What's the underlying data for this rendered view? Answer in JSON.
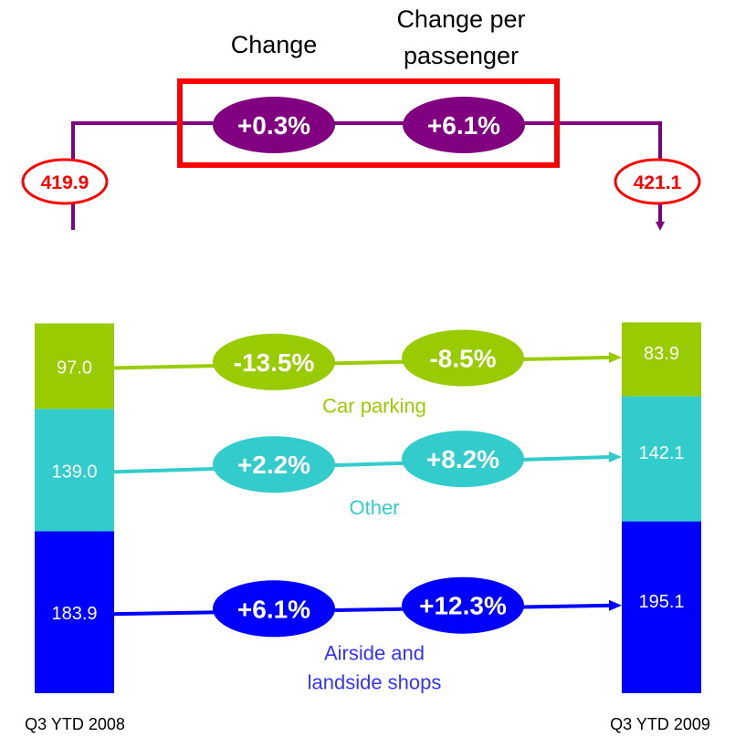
{
  "chart_data": {
    "type": "bar",
    "categories": [
      "Q3 YTD 2008",
      "Q3 YTD 2009"
    ],
    "totals": [
      "419.9",
      "421.1"
    ],
    "series": [
      {
        "key": "car",
        "name": "Car parking",
        "label_lines": [
          "Car parking"
        ],
        "values": [
          97.0,
          83.9
        ],
        "value_labels": [
          "97.0",
          "83.9"
        ],
        "change": "-13.5%",
        "change_per_passenger": "-8.5%",
        "bar_color": "#99cc00",
        "oval_color": "#99cc00",
        "label_color": "#99cc00",
        "value_text_color": "#ffffff"
      },
      {
        "key": "other",
        "name": "Other",
        "label_lines": [
          "Other"
        ],
        "values": [
          139.0,
          142.1
        ],
        "value_labels": [
          "139.0",
          "142.1"
        ],
        "change": "+2.2%",
        "change_per_passenger": "+8.2%",
        "bar_color": "#33cccc",
        "oval_color": "#33cccc",
        "label_color": "#33cccc",
        "value_text_color": "#ffffff"
      },
      {
        "key": "shops",
        "name": "Airside and landside shops",
        "label_lines": [
          "Airside and",
          "landside shops"
        ],
        "values": [
          183.9,
          195.1
        ],
        "value_labels": [
          "183.9",
          "195.1"
        ],
        "change": "+6.1%",
        "change_per_passenger": "+12.3%",
        "bar_color": "#0000ff",
        "oval_color": "#0000ff",
        "label_color": "#3333ff",
        "value_text_color": "#ffffff"
      }
    ],
    "total_change": "+0.3%",
    "total_change_per_passenger": "+6.1%",
    "column_headers": {
      "change": "Change",
      "per_passenger_lines": [
        "Change per",
        "passenger"
      ]
    },
    "colors": {
      "total_connector": "#800080",
      "total_oval": "#800080",
      "highlight_box": "#ff0000",
      "total_label": "#ff0000"
    }
  }
}
